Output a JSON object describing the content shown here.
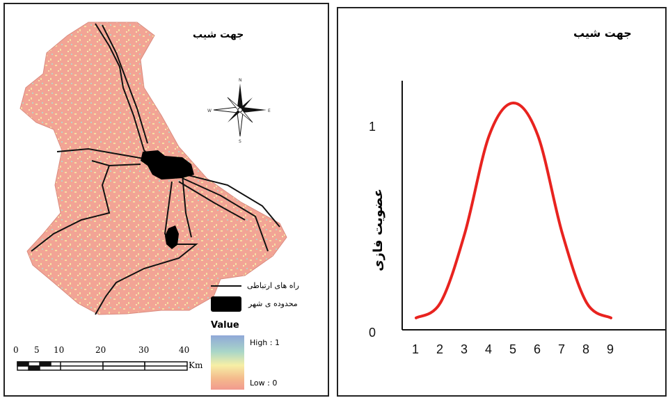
{
  "map": {
    "title": "جهت شیب",
    "legend": {
      "roads_label": "راه های ارتباطی",
      "city_label": "محدوده ی شهر",
      "value_title": "Value",
      "high_label": "High : 1",
      "low_label": "Low : 0",
      "colors": [
        "#8fa8d8",
        "#a9d6c8",
        "#f6efa6",
        "#f4b98c",
        "#f29a8f"
      ]
    },
    "scale": {
      "ticks": [
        "0",
        "5",
        "10",
        "20",
        "30",
        "40"
      ],
      "unit": "Km"
    },
    "colors": {
      "fill": "#f2a495",
      "speckle": "#f7dfa2",
      "roads": "#111111",
      "city": "#000000"
    }
  },
  "chart_data": {
    "type": "line",
    "title": "جهت شیب",
    "ylabel": "عضویت فازی",
    "xlabel": "",
    "x_ticks": [
      "1",
      "2",
      "3",
      "4",
      "5",
      "6",
      "7",
      "8",
      "9"
    ],
    "y_ticks": [
      "0",
      "1"
    ],
    "xlim": [
      1,
      9
    ],
    "ylim": [
      0,
      1
    ],
    "series": [
      {
        "x": [
          1,
          2,
          3,
          4,
          5,
          6,
          7,
          8,
          9
        ],
        "y": [
          0.01,
          0.08,
          0.4,
          0.85,
          1.0,
          0.85,
          0.4,
          0.08,
          0.01
        ],
        "color": "#e8231f"
      }
    ]
  }
}
